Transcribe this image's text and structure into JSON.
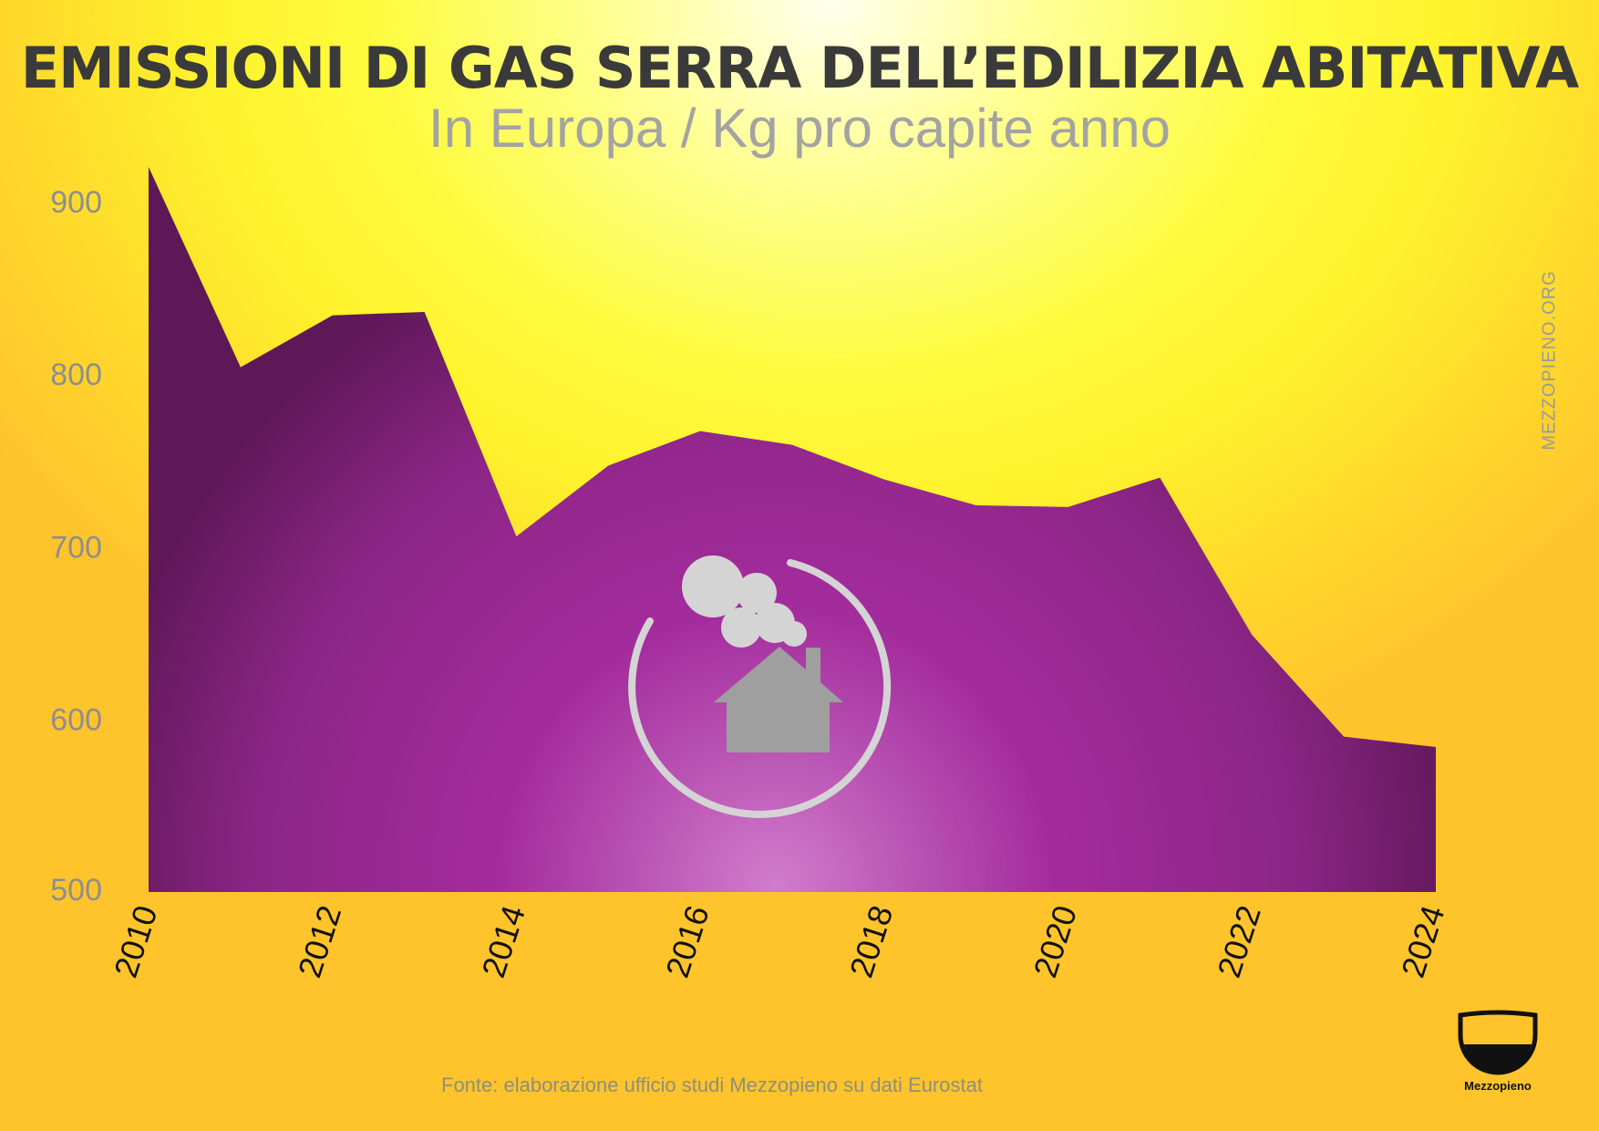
{
  "title": "EMISSIONI DI GAS SERRA DELL’EDILIZIA ABITATIVA",
  "subtitle": "In Europa / Kg pro capite anno",
  "side_mark": "MEZZOPIENO.ORG",
  "source": "Fonte: elaborazione ufficio studi Mezzopieno su dati Eurostat",
  "logo": {
    "name": "Mezzopieno",
    "icon": "half-full-glass-icon"
  },
  "center_icon": "house-with-chimney-smoke-icon",
  "colors": {
    "area_dark": "#5e1858",
    "area_mid": "#a32c9c",
    "area_light": "#d17ccc",
    "title": "#3a3a3a",
    "subtitle": "#a3a3a3",
    "axis_text": "#8e8e8e",
    "icon_grey": "#d4d4d4"
  },
  "chart_data": {
    "type": "area",
    "x": [
      2010,
      2011,
      2012,
      2013,
      2014,
      2015,
      2016,
      2017,
      2018,
      2019,
      2020,
      2021,
      2022,
      2023,
      2024
    ],
    "values": [
      920,
      804,
      834,
      836,
      706,
      747,
      767,
      759,
      739,
      724,
      723,
      740,
      649,
      590,
      584
    ],
    "xticks": [
      "2010",
      "2012",
      "2014",
      "2016",
      "2018",
      "2020",
      "2022",
      "2024"
    ],
    "yticks": [
      "500",
      "600",
      "700",
      "800",
      "900"
    ],
    "ylim": [
      500,
      920
    ],
    "xlim": [
      2010,
      2024
    ],
    "grid": false,
    "legend": "none"
  }
}
